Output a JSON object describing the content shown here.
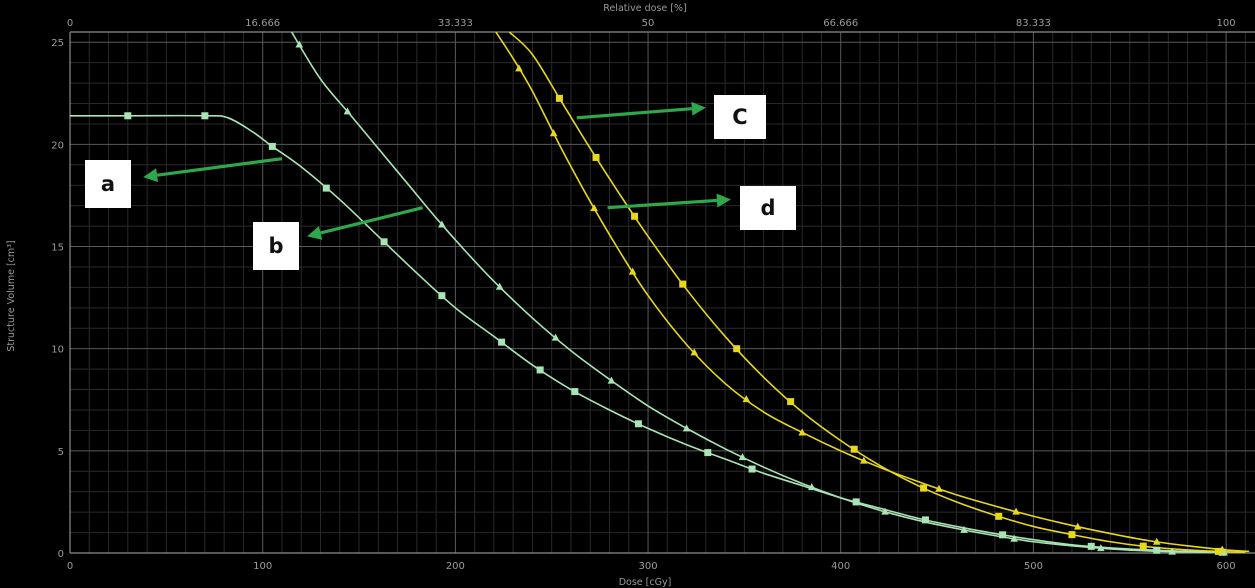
{
  "chart_data": {
    "type": "line",
    "xlabel": "Dose [cGy]",
    "ylabel": "Structure Volume [cm³]",
    "top_xlabel": "Relative dose [%]",
    "xlim": [
      0,
      615
    ],
    "ylim": [
      0,
      25.5
    ],
    "x_ticks": [
      "0",
      "100",
      "200",
      "300",
      "400",
      "500",
      "600"
    ],
    "y_ticks": [
      "0",
      "5",
      "10",
      "15",
      "20",
      "25"
    ],
    "top_ticks": [
      "0",
      "16.666",
      "33.333",
      "50",
      "66.666",
      "83.333",
      "100"
    ],
    "grid": true,
    "colors": {
      "green": "#a8e4b4",
      "yellow": "#e6d81c",
      "axis": "#8c8c8c",
      "grid": "#3a3a3a",
      "arrow": "#2ea84a"
    },
    "series": [
      {
        "color": "#a8e4b4",
        "marker": "square",
        "x": [
          0,
          30,
          70,
          82,
          95,
          105,
          120,
          140,
          160,
          180,
          200,
          220,
          240,
          260,
          280,
          300,
          320,
          340,
          360,
          380,
          400,
          420,
          440,
          460,
          480,
          500,
          520,
          540,
          560,
          580,
          600
        ],
        "y": [
          21.4,
          21.4,
          21.4,
          21.3,
          20.6,
          19.9,
          18.9,
          17.3,
          15.5,
          13.7,
          12.0,
          10.6,
          9.2,
          8.0,
          7.0,
          6.1,
          5.3,
          4.6,
          3.9,
          3.3,
          2.7,
          2.2,
          1.7,
          1.3,
          0.95,
          0.65,
          0.4,
          0.25,
          0.15,
          0.08,
          0.03
        ],
        "markers_x": [
          30,
          70,
          105,
          133,
          163,
          193,
          224,
          244,
          262,
          295,
          331,
          354,
          408,
          444,
          484,
          530,
          564,
          598
        ]
      },
      {
        "color": "#a8e4b4",
        "marker": "triangle",
        "x": [
          115,
          130,
          145,
          160,
          175,
          190,
          205,
          220,
          240,
          260,
          280,
          300,
          320,
          340,
          360,
          380,
          400,
          420,
          440,
          460,
          480,
          500,
          520,
          540,
          560,
          580,
          600
        ],
        "y": [
          25.5,
          23.2,
          21.5,
          19.8,
          18.1,
          16.4,
          14.8,
          13.3,
          11.5,
          9.9,
          8.5,
          7.2,
          6.1,
          5.1,
          4.2,
          3.4,
          2.7,
          2.1,
          1.6,
          1.2,
          0.85,
          0.55,
          0.35,
          0.2,
          0.1,
          0.05,
          0.02
        ],
        "markers_x": [
          119,
          144,
          193,
          223,
          252,
          281,
          320,
          349,
          385,
          423,
          464,
          490,
          535,
          572,
          599
        ]
      },
      {
        "color": "#e6d81c",
        "marker": "square",
        "x": [
          228,
          240,
          255,
          270,
          285,
          300,
          320,
          340,
          360,
          380,
          400,
          420,
          440,
          460,
          480,
          500,
          520,
          540,
          560,
          580,
          600,
          610
        ],
        "y": [
          25.5,
          24.4,
          22.1,
          19.8,
          17.6,
          15.5,
          12.9,
          10.6,
          8.6,
          6.9,
          5.5,
          4.3,
          3.3,
          2.5,
          1.85,
          1.3,
          0.9,
          0.55,
          0.3,
          0.15,
          0.06,
          0.03
        ],
        "markers_x": [
          254,
          273,
          293,
          318,
          346,
          374,
          407,
          443,
          482,
          520,
          557,
          596
        ]
      },
      {
        "color": "#e6d81c",
        "marker": "triangle",
        "x": [
          221,
          230,
          240,
          255,
          270,
          285,
          300,
          320,
          340,
          360,
          380,
          400,
          420,
          440,
          460,
          480,
          500,
          520,
          540,
          560,
          580,
          600,
          612
        ],
        "y": [
          25.5,
          24.2,
          22.6,
          19.8,
          17.2,
          14.8,
          12.6,
          10.2,
          8.3,
          6.9,
          5.9,
          5.0,
          4.2,
          3.5,
          2.85,
          2.3,
          1.8,
          1.35,
          0.95,
          0.6,
          0.35,
          0.15,
          0.08
        ],
        "markers_x": [
          233,
          251,
          272,
          292,
          324,
          351,
          380,
          412,
          451,
          491,
          523,
          564,
          598
        ]
      }
    ],
    "annotations": [
      {
        "label": "a",
        "arrow_from": [
          110,
          19.3
        ],
        "arrow_to": [
          38,
          18.4
        ]
      },
      {
        "label": "b",
        "arrow_from": [
          183,
          16.9
        ],
        "arrow_to": [
          123,
          15.5
        ]
      },
      {
        "label": "C",
        "arrow_from": [
          263,
          21.3
        ],
        "arrow_to": [
          330,
          21.8
        ]
      },
      {
        "label": "d",
        "arrow_from": [
          279,
          16.9
        ],
        "arrow_to": [
          343,
          17.3
        ]
      }
    ]
  }
}
